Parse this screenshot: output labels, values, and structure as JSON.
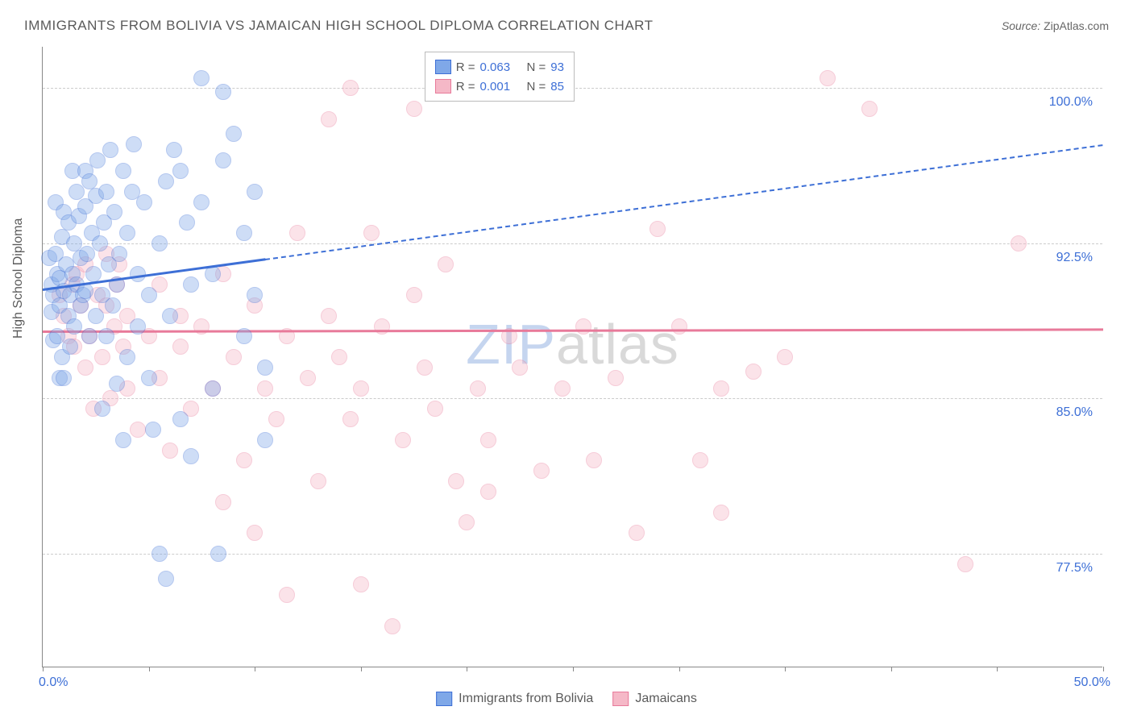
{
  "title": "IMMIGRANTS FROM BOLIVIA VS JAMAICAN HIGH SCHOOL DIPLOMA CORRELATION CHART",
  "source_label": "Source:",
  "source_value": "ZipAtlas.com",
  "y_axis_label": "High School Diploma",
  "watermark_a": "ZIP",
  "watermark_b": "atlas",
  "watermark_color_a": "#c5d5ef",
  "watermark_color_b": "#d9d9d9",
  "chart": {
    "type": "scatter",
    "xlim": [
      0,
      50
    ],
    "ylim": [
      72,
      102
    ],
    "x_ticks": [
      0,
      5,
      10,
      15,
      20,
      25,
      30,
      35,
      40,
      45,
      50
    ],
    "x_tick_labels": {
      "0": "0.0%",
      "50": "50.0%"
    },
    "y_gridlines": [
      77.5,
      85.0,
      92.5,
      100.0
    ],
    "y_tick_labels": [
      "77.5%",
      "85.0%",
      "92.5%",
      "100.0%"
    ],
    "grid_color": "#cccccc",
    "background": "#ffffff",
    "marker_radius": 10,
    "marker_opacity": 0.38,
    "series": [
      {
        "name": "Immigrants from Bolivia",
        "fill": "#7fa8e8",
        "stroke": "#3d6fd6",
        "R": "0.063",
        "N": "93",
        "trend": {
          "y_at_x0": 90.3,
          "y_at_x50": 97.3,
          "solid_until_x": 10.5
        },
        "points": [
          [
            0.3,
            91.8
          ],
          [
            0.4,
            90.5
          ],
          [
            0.4,
            89.2
          ],
          [
            0.5,
            90.0
          ],
          [
            0.5,
            87.8
          ],
          [
            0.6,
            92.0
          ],
          [
            0.6,
            94.5
          ],
          [
            0.7,
            91.0
          ],
          [
            0.7,
            88.0
          ],
          [
            0.8,
            90.8
          ],
          [
            0.8,
            86.0
          ],
          [
            0.8,
            89.5
          ],
          [
            0.9,
            92.8
          ],
          [
            0.9,
            87.0
          ],
          [
            1.0,
            90.2
          ],
          [
            1.0,
            94.0
          ],
          [
            1.0,
            86.0
          ],
          [
            1.1,
            91.5
          ],
          [
            1.2,
            89.0
          ],
          [
            1.2,
            93.5
          ],
          [
            1.3,
            90.0
          ],
          [
            1.3,
            87.5
          ],
          [
            1.4,
            91.0
          ],
          [
            1.4,
            96.0
          ],
          [
            1.5,
            88.5
          ],
          [
            1.5,
            92.5
          ],
          [
            1.6,
            90.5
          ],
          [
            1.6,
            95.0
          ],
          [
            1.7,
            93.8
          ],
          [
            1.8,
            89.5
          ],
          [
            1.8,
            91.8
          ],
          [
            1.9,
            90.0
          ],
          [
            2.0,
            94.3
          ],
          [
            2.0,
            96.0
          ],
          [
            2.0,
            90.2
          ],
          [
            2.1,
            92.0
          ],
          [
            2.2,
            95.5
          ],
          [
            2.2,
            88.0
          ],
          [
            2.3,
            93.0
          ],
          [
            2.4,
            91.0
          ],
          [
            2.5,
            94.8
          ],
          [
            2.5,
            89.0
          ],
          [
            2.6,
            96.5
          ],
          [
            2.7,
            92.5
          ],
          [
            2.8,
            90.0
          ],
          [
            2.8,
            84.5
          ],
          [
            2.9,
            93.5
          ],
          [
            3.0,
            95.0
          ],
          [
            3.0,
            88.0
          ],
          [
            3.1,
            91.5
          ],
          [
            3.2,
            97.0
          ],
          [
            3.3,
            89.5
          ],
          [
            3.4,
            94.0
          ],
          [
            3.5,
            90.5
          ],
          [
            3.5,
            85.7
          ],
          [
            3.6,
            92.0
          ],
          [
            3.8,
            96.0
          ],
          [
            3.8,
            83.0
          ],
          [
            4.0,
            93.0
          ],
          [
            4.0,
            87.0
          ],
          [
            4.2,
            95.0
          ],
          [
            4.3,
            97.3
          ],
          [
            4.5,
            91.0
          ],
          [
            4.5,
            88.5
          ],
          [
            4.8,
            94.5
          ],
          [
            5.0,
            90.0
          ],
          [
            5.0,
            86.0
          ],
          [
            5.2,
            83.5
          ],
          [
            5.5,
            92.5
          ],
          [
            5.5,
            77.5
          ],
          [
            5.8,
            95.5
          ],
          [
            5.8,
            76.3
          ],
          [
            6.0,
            89.0
          ],
          [
            6.2,
            97.0
          ],
          [
            6.5,
            96.0
          ],
          [
            6.5,
            84.0
          ],
          [
            6.8,
            93.5
          ],
          [
            7.0,
            90.5
          ],
          [
            7.0,
            82.2
          ],
          [
            7.5,
            100.5
          ],
          [
            7.5,
            94.5
          ],
          [
            8.0,
            91.0
          ],
          [
            8.0,
            85.5
          ],
          [
            8.3,
            77.5
          ],
          [
            8.5,
            99.8
          ],
          [
            8.5,
            96.5
          ],
          [
            9.0,
            97.8
          ],
          [
            9.5,
            93.0
          ],
          [
            9.5,
            88.0
          ],
          [
            10.0,
            95.0
          ],
          [
            10.0,
            90.0
          ],
          [
            10.5,
            86.5
          ],
          [
            10.5,
            83.0
          ]
        ]
      },
      {
        "name": "Jamaicans",
        "fill": "#f5b8c7",
        "stroke": "#e87a9a",
        "R": "0.001",
        "N": "85",
        "trend": {
          "y_at_x0": 88.3,
          "y_at_x50": 88.4,
          "solid_until_x": 50
        },
        "points": [
          [
            0.8,
            90.0
          ],
          [
            1.0,
            89.0
          ],
          [
            1.2,
            88.0
          ],
          [
            1.4,
            90.5
          ],
          [
            1.5,
            87.5
          ],
          [
            1.6,
            91.0
          ],
          [
            1.8,
            89.5
          ],
          [
            2.0,
            86.5
          ],
          [
            2.0,
            91.5
          ],
          [
            2.2,
            88.0
          ],
          [
            2.4,
            84.5
          ],
          [
            2.6,
            90.0
          ],
          [
            2.8,
            87.0
          ],
          [
            3.0,
            89.5
          ],
          [
            3.0,
            92.0
          ],
          [
            3.2,
            85.0
          ],
          [
            3.4,
            88.5
          ],
          [
            3.5,
            90.5
          ],
          [
            3.6,
            91.5
          ],
          [
            3.8,
            87.5
          ],
          [
            4.0,
            85.5
          ],
          [
            4.0,
            89.0
          ],
          [
            4.5,
            83.5
          ],
          [
            5.0,
            88.0
          ],
          [
            5.5,
            86.0
          ],
          [
            5.5,
            90.5
          ],
          [
            6.0,
            82.5
          ],
          [
            6.5,
            87.5
          ],
          [
            6.5,
            89.0
          ],
          [
            7.0,
            84.5
          ],
          [
            7.5,
            88.5
          ],
          [
            8.0,
            85.5
          ],
          [
            8.5,
            91.0
          ],
          [
            8.5,
            80.0
          ],
          [
            9.0,
            87.0
          ],
          [
            9.5,
            82.0
          ],
          [
            10.0,
            89.5
          ],
          [
            10.0,
            78.5
          ],
          [
            10.5,
            85.5
          ],
          [
            11.0,
            84.0
          ],
          [
            11.5,
            75.5
          ],
          [
            11.5,
            88.0
          ],
          [
            12.0,
            93.0
          ],
          [
            12.5,
            86.0
          ],
          [
            13.0,
            81.0
          ],
          [
            13.5,
            98.5
          ],
          [
            13.5,
            89.0
          ],
          [
            14.0,
            87.0
          ],
          [
            14.5,
            84.0
          ],
          [
            14.5,
            100.0
          ],
          [
            15.0,
            76.0
          ],
          [
            15.0,
            85.5
          ],
          [
            15.5,
            93.0
          ],
          [
            16.0,
            88.5
          ],
          [
            16.5,
            74.0
          ],
          [
            17.0,
            83.0
          ],
          [
            17.5,
            90.0
          ],
          [
            17.5,
            99.0
          ],
          [
            18.0,
            86.5
          ],
          [
            18.5,
            84.5
          ],
          [
            19.0,
            91.5
          ],
          [
            19.5,
            81.0
          ],
          [
            20.0,
            79.0
          ],
          [
            20.5,
            85.5
          ],
          [
            21.0,
            83.0
          ],
          [
            21.0,
            80.5
          ],
          [
            22.0,
            88.0
          ],
          [
            22.5,
            86.5
          ],
          [
            23.5,
            81.5
          ],
          [
            24.5,
            85.5
          ],
          [
            25.5,
            88.5
          ],
          [
            26.0,
            82.0
          ],
          [
            27.0,
            86.0
          ],
          [
            28.0,
            78.5
          ],
          [
            29.0,
            93.2
          ],
          [
            30.0,
            88.5
          ],
          [
            31.0,
            82.0
          ],
          [
            32.0,
            85.5
          ],
          [
            32.0,
            79.5
          ],
          [
            33.5,
            86.3
          ],
          [
            35.0,
            87.0
          ],
          [
            37.0,
            100.5
          ],
          [
            39.0,
            99.0
          ],
          [
            43.5,
            77.0
          ],
          [
            46.0,
            92.5
          ]
        ]
      }
    ],
    "legend_top": {
      "R_label": "R =",
      "N_label": "N ="
    },
    "legend_bottom_labels": [
      "Immigrants from Bolivia",
      "Jamaicans"
    ]
  }
}
